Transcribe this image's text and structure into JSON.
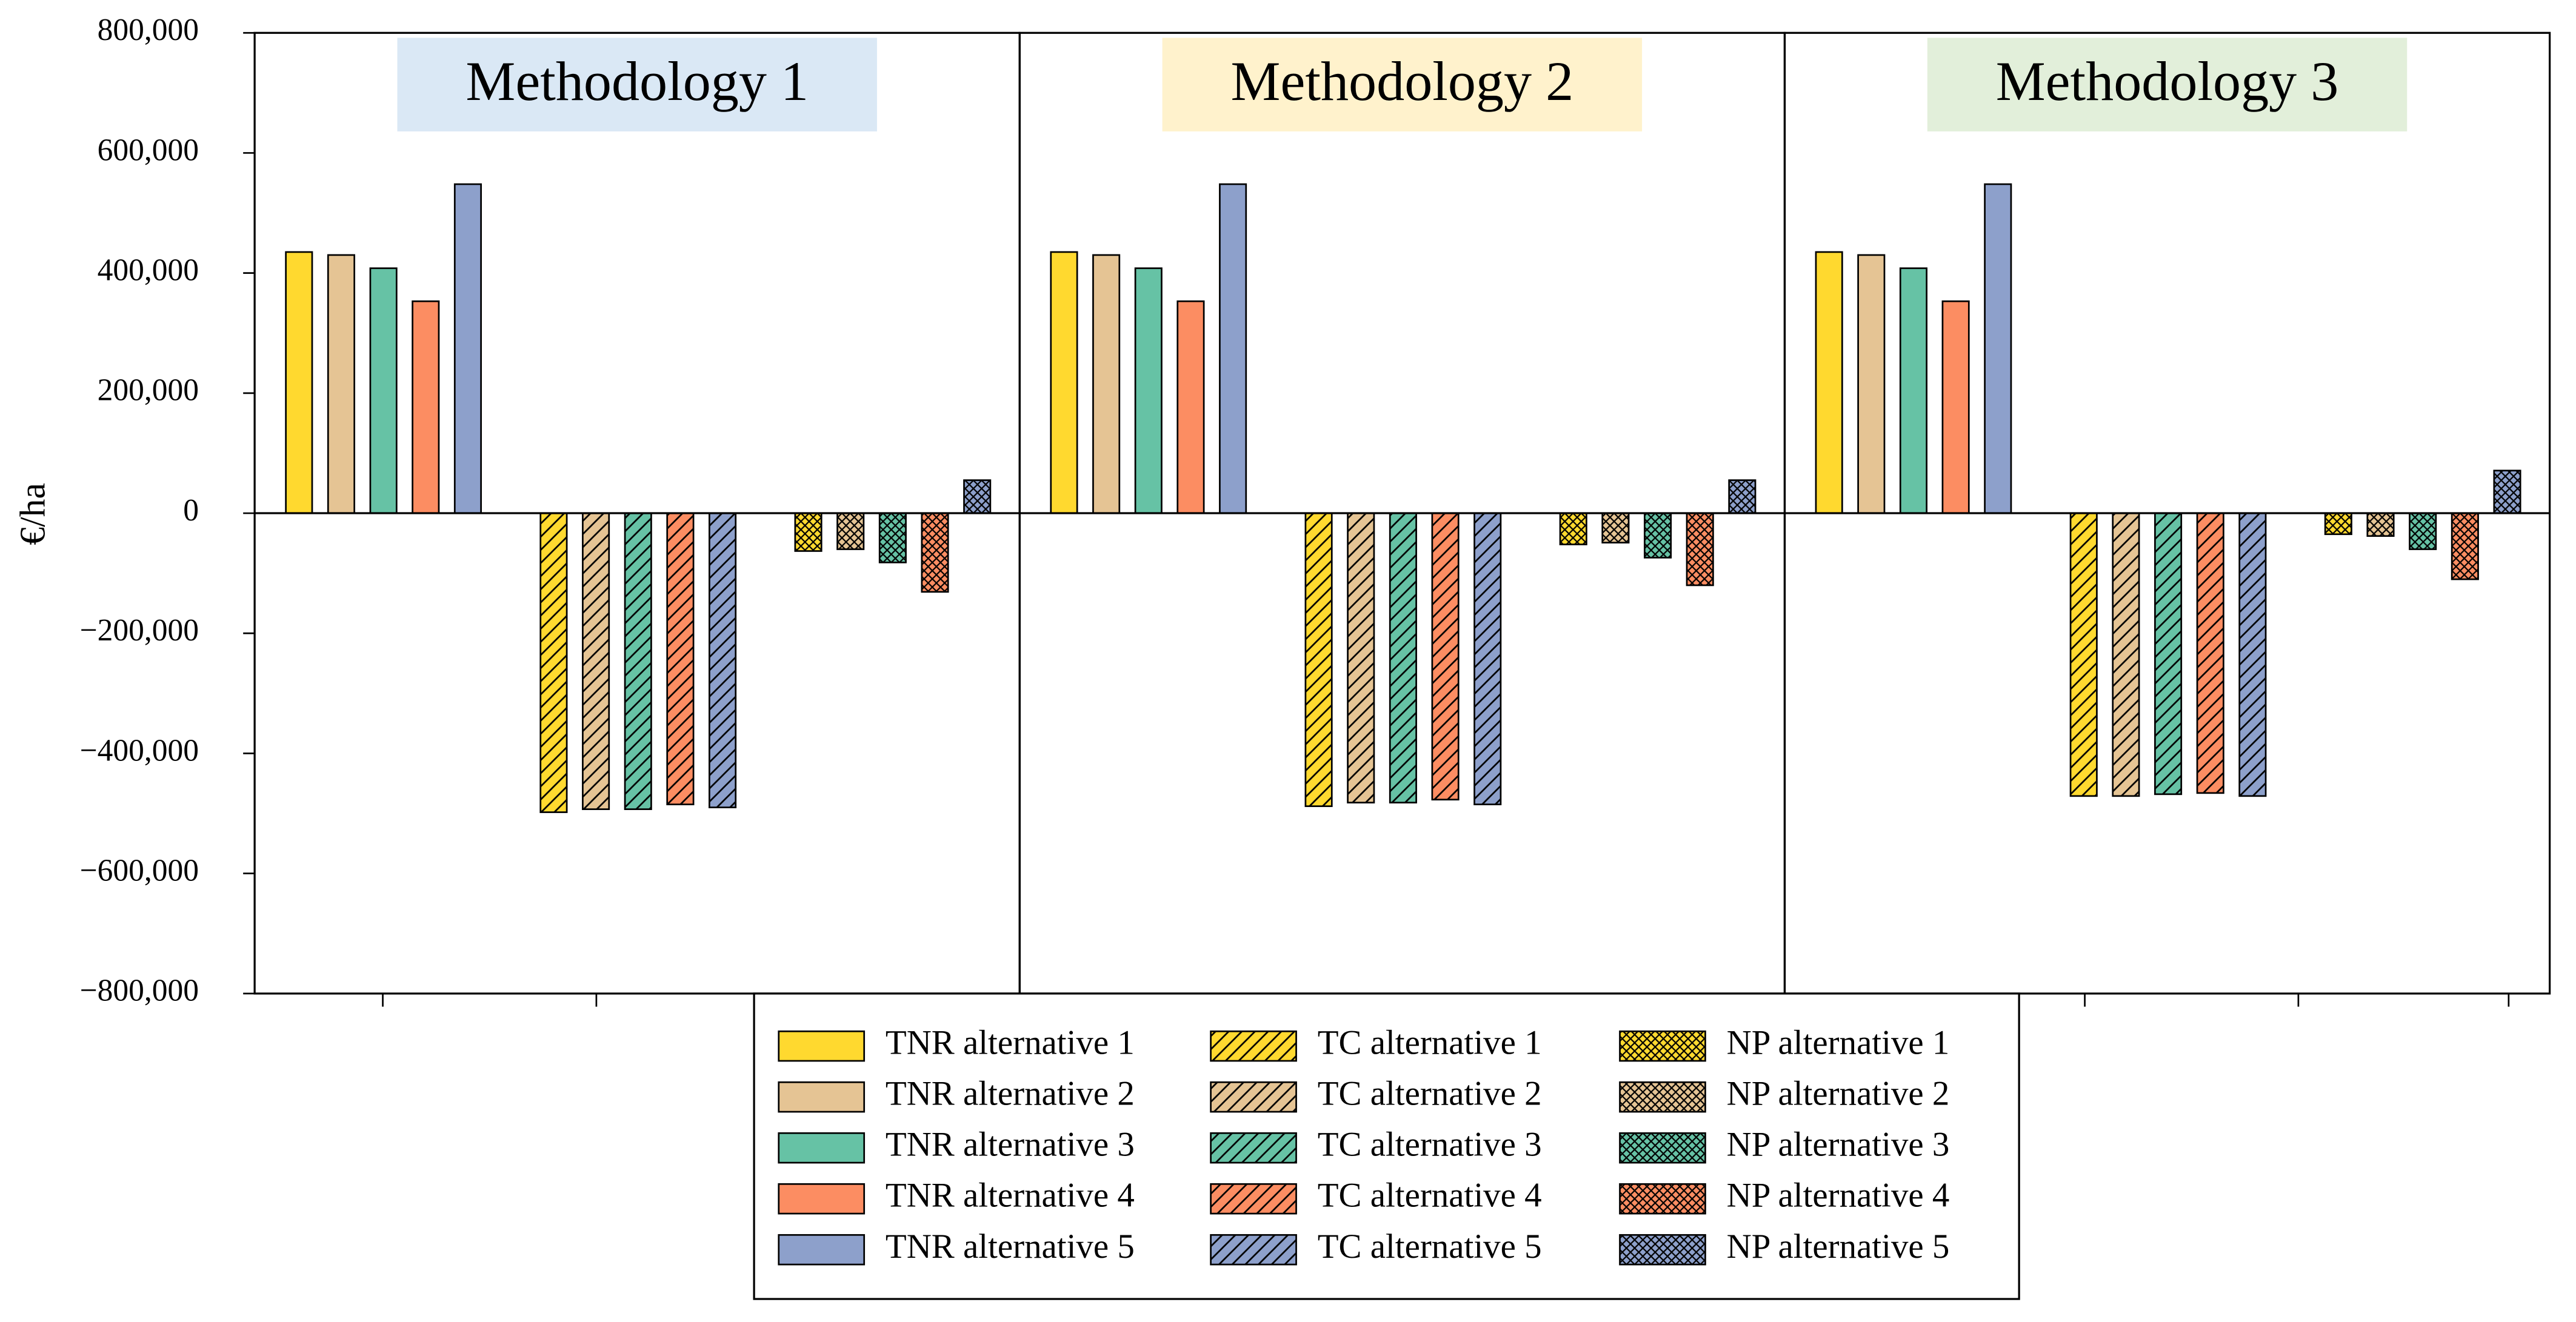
{
  "chart_data": {
    "type": "bar",
    "ylabel": "€/ha",
    "categories": [
      "Methodology 1",
      "Methodology 2",
      "Methodology 3"
    ],
    "panel_colors": [
      "#dae8f5",
      "#fff2cc",
      "#e2efda"
    ],
    "ylim": [
      -800000,
      800000
    ],
    "yticks": [
      {
        "value": -800000,
        "label": "−800,000"
      },
      {
        "value": -600000,
        "label": "−600,000"
      },
      {
        "value": -400000,
        "label": "−400,000"
      },
      {
        "value": -200000,
        "label": "−200,000"
      },
      0,
      {
        "value": 200000,
        "label": "200,000"
      },
      {
        "value": 400000,
        "label": "400,000"
      },
      {
        "value": 600000,
        "label": "600,000"
      },
      {
        "value": 800000,
        "label": "800,000"
      }
    ],
    "series": [
      {
        "name": "TNR alternative 1",
        "color": "#ffd92f",
        "pattern": "solid",
        "values": [
          435000,
          435000,
          435000
        ]
      },
      {
        "name": "TNR alternative 2",
        "color": "#e5c494",
        "pattern": "solid",
        "values": [
          430000,
          430000,
          430000
        ]
      },
      {
        "name": "TNR alternative 3",
        "color": "#66c2a5",
        "pattern": "solid",
        "values": [
          408000,
          408000,
          408000
        ]
      },
      {
        "name": "TNR alternative 4",
        "color": "#fc8d62",
        "pattern": "solid",
        "values": [
          353000,
          353000,
          353000
        ]
      },
      {
        "name": "TNR alternative 5",
        "color": "#8da0cb",
        "pattern": "solid",
        "values": [
          548000,
          548000,
          548000
        ]
      },
      {
        "name": "TC alternative 1",
        "color": "#ffd92f",
        "pattern": "hatch",
        "values": [
          -498000,
          -488000,
          -471000
        ]
      },
      {
        "name": "TC alternative 2",
        "color": "#e5c494",
        "pattern": "hatch",
        "values": [
          -493000,
          -482000,
          -471000
        ]
      },
      {
        "name": "TC alternative 3",
        "color": "#66c2a5",
        "pattern": "hatch",
        "values": [
          -493000,
          -482000,
          -468000
        ]
      },
      {
        "name": "TC alternative 4",
        "color": "#fc8d62",
        "pattern": "hatch",
        "values": [
          -485000,
          -477000,
          -466000
        ]
      },
      {
        "name": "TC alternative 5",
        "color": "#8da0cb",
        "pattern": "hatch",
        "values": [
          -490000,
          -485000,
          -471000
        ]
      },
      {
        "name": "NP alternative 1",
        "color": "#ffd92f",
        "pattern": "crosshatch",
        "values": [
          -63000,
          -52000,
          -35000
        ]
      },
      {
        "name": "NP alternative 2",
        "color": "#e5c494",
        "pattern": "crosshatch",
        "values": [
          -60000,
          -49000,
          -38000
        ]
      },
      {
        "name": "NP alternative 3",
        "color": "#66c2a5",
        "pattern": "crosshatch",
        "values": [
          -82000,
          -74000,
          -60000
        ]
      },
      {
        "name": "NP alternative 4",
        "color": "#fc8d62",
        "pattern": "crosshatch",
        "values": [
          -131000,
          -120000,
          -110000
        ]
      },
      {
        "name": "NP alternative 5",
        "color": "#8da0cb",
        "pattern": "crosshatch",
        "values": [
          55000,
          55000,
          71000
        ]
      }
    ]
  }
}
